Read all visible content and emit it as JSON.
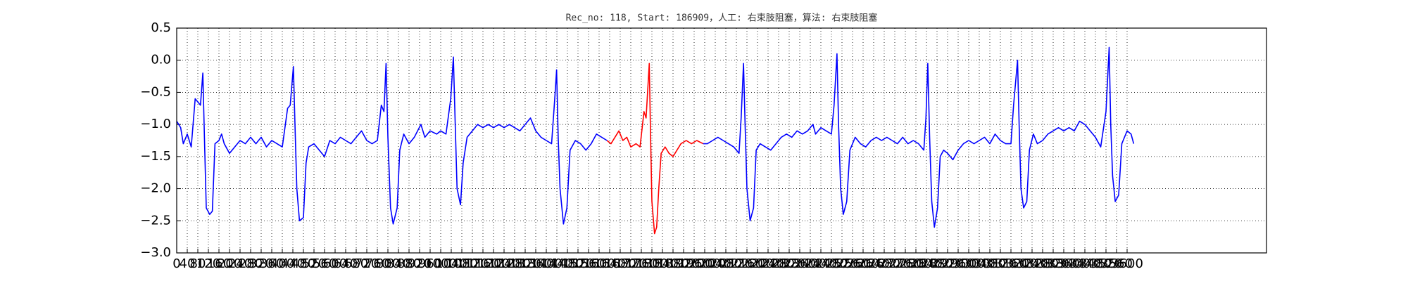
{
  "chart_data": {
    "type": "line",
    "title": "Rec_no: 118, Start: 186909，人工: 右束肢阻塞，算法: 右束肢阻塞",
    "xlim": [
      0,
      4128
    ],
    "ylim": [
      -3.0,
      0.5
    ],
    "yticks": [
      0.5,
      {
        "value": 0,
        "label": "0.0"
      },
      {
        "value": -0.5,
        "label": "−0.5"
      },
      {
        "value": -1,
        "label": "−1.0"
      },
      {
        "value": -1.5,
        "label": "−1.5"
      },
      {
        "value": -2,
        "label": "−2.0"
      },
      {
        "value": -2.5,
        "label": "−2.5"
      },
      {
        "value": -3,
        "label": "−3.0"
      }
    ],
    "xticks": [
      0,
      40,
      80,
      120,
      160,
      200,
      240,
      280,
      320,
      360,
      400,
      440,
      480,
      520,
      560,
      600,
      640,
      680,
      720,
      760,
      800,
      840,
      880,
      920,
      960,
      1000,
      1040,
      1080,
      1120,
      1160,
      1200,
      1240,
      1280,
      1320,
      1360,
      1400,
      1440,
      1480,
      1520,
      1560,
      1600,
      1640,
      1680,
      1720,
      1760,
      1800,
      1840,
      1880,
      1920,
      1960,
      2000,
      2040,
      2080,
      2120,
      2160,
      2200,
      2240,
      2280,
      2320,
      2360,
      2400,
      2440,
      2480,
      2520,
      2560,
      2600,
      2640,
      2680,
      2720,
      2760,
      2800,
      2840,
      2880,
      2920,
      2960,
      3000,
      3040,
      3080,
      3120,
      3160,
      3200,
      3240,
      3280,
      3320,
      3360,
      3400,
      3440,
      3480,
      3520,
      3560,
      3600
    ],
    "grid": true,
    "series": [
      {
        "color": "#0000ff",
        "x": [
          0,
          15,
          25,
          40,
          55,
          70,
          80,
          90,
          99,
          105,
          112,
          125,
          135,
          145,
          160,
          170,
          180,
          200,
          220,
          240,
          260,
          280,
          300,
          320,
          340,
          360,
          380,
          400,
          420,
          430,
          442,
          448,
          455,
          465,
          480,
          490,
          500,
          520,
          540,
          560,
          580,
          600,
          620,
          640,
          660,
          680,
          700,
          720,
          740,
          760,
          775,
          785,
          793,
          800,
          810,
          820,
          835,
          845,
          860,
          880,
          900,
          925,
          940,
          960,
          985,
          1000,
          1020,
          1038,
          1048,
          1055,
          1062,
          1075,
          1085,
          1100,
          1120,
          1140,
          1160,
          1180,
          1200,
          1220,
          1240,
          1260,
          1280,
          1300,
          1320,
          1340,
          1360,
          1380,
          1400,
          1420,
          1432,
          1439,
          1445,
          1452,
          1465,
          1478,
          1490,
          1510,
          1530,
          1550,
          1570,
          1590,
          1610,
          1630
        ],
        "values": [
          -0.95,
          -1.05,
          -1.3,
          -1.15,
          -1.35,
          -0.6,
          -0.65,
          -0.7,
          -0.2,
          -1.2,
          -2.3,
          -2.4,
          -2.35,
          -1.3,
          -1.25,
          -1.15,
          -1.3,
          -1.45,
          -1.35,
          -1.25,
          -1.3,
          -1.2,
          -1.3,
          -1.2,
          -1.35,
          -1.25,
          -1.3,
          -1.35,
          -0.75,
          -0.7,
          -0.1,
          -1.0,
          -2.0,
          -2.5,
          -2.45,
          -1.6,
          -1.35,
          -1.3,
          -1.4,
          -1.5,
          -1.25,
          -1.3,
          -1.2,
          -1.25,
          -1.3,
          -1.2,
          -1.1,
          -1.25,
          -1.3,
          -1.25,
          -0.7,
          -0.8,
          -0.05,
          -1.2,
          -2.3,
          -2.55,
          -2.3,
          -1.4,
          -1.15,
          -1.3,
          -1.2,
          -1.0,
          -1.2,
          -1.1,
          -1.15,
          -1.1,
          -1.15,
          -0.6,
          0.05,
          -1.0,
          -2.0,
          -2.25,
          -1.6,
          -1.2,
          -1.1,
          -1.0,
          -1.05,
          -1.0,
          -1.05,
          -1.0,
          -1.05,
          -1.0,
          -1.05,
          -1.1,
          -1.0,
          -0.9,
          -1.1,
          -1.2,
          -1.25,
          -1.3,
          -0.6,
          -0.15,
          -1.2,
          -2.0,
          -2.55,
          -2.3,
          -1.4,
          -1.25,
          -1.3,
          -1.4,
          -1.3,
          -1.15,
          -1.2,
          -1.25
        ]
      },
      {
        "color": "#ff0000",
        "x": [
          1630,
          1645,
          1660,
          1675,
          1690,
          1705,
          1720,
          1740,
          1755,
          1770,
          1778,
          1790,
          1795,
          1800,
          1810,
          1818,
          1826,
          1835,
          1850,
          1865,
          1880,
          1895,
          1910,
          1930,
          1950,
          1970,
          1994
        ],
        "values": [
          -1.25,
          -1.3,
          -1.2,
          -1.1,
          -1.25,
          -1.2,
          -1.35,
          -1.3,
          -1.35,
          -0.8,
          -0.9,
          -0.05,
          -1.2,
          -2.2,
          -2.7,
          -2.6,
          -2.0,
          -1.45,
          -1.35,
          -1.45,
          -1.5,
          -1.4,
          -1.3,
          -1.25,
          -1.3,
          -1.25,
          -1.3
        ]
      },
      {
        "color": "#0000ff",
        "x": [
          1994,
          2010,
          2030,
          2050,
          2070,
          2090,
          2110,
          2130,
          2138,
          2147,
          2153,
          2160,
          2172,
          2185,
          2195,
          2210,
          2230,
          2250,
          2270,
          2290,
          2310,
          2330,
          2350,
          2370,
          2390,
          2410,
          2420,
          2440,
          2460,
          2480,
          2490,
          2501,
          2507,
          2515,
          2525,
          2538,
          2550,
          2570,
          2590,
          2610,
          2630,
          2650,
          2670,
          2690,
          2710,
          2730,
          2750,
          2770,
          2790,
          2810,
          2830,
          2838,
          2845,
          2852,
          2860,
          2870,
          2882,
          2892,
          2905,
          2920,
          2940,
          2960,
          2980,
          3000,
          3020,
          3040,
          3060,
          3080,
          3100,
          3120,
          3140,
          3160,
          3170,
          3185,
          3191,
          3198,
          3208,
          3220,
          3230,
          3245,
          3260,
          3280,
          3300,
          3320,
          3340,
          3360,
          3380,
          3400,
          3420,
          3440,
          3460,
          3480,
          3500,
          3520,
          3532,
          3538,
          3545,
          3555,
          3568,
          3580,
          3600,
          3615,
          3625
        ],
        "values": [
          -1.3,
          -1.3,
          -1.25,
          -1.2,
          -1.25,
          -1.3,
          -1.35,
          -1.45,
          -0.9,
          -0.05,
          -1.0,
          -2.0,
          -2.5,
          -2.3,
          -1.4,
          -1.3,
          -1.35,
          -1.4,
          -1.3,
          -1.2,
          -1.15,
          -1.2,
          -1.1,
          -1.15,
          -1.1,
          -1.0,
          -1.15,
          -1.05,
          -1.1,
          -1.15,
          -0.7,
          0.1,
          -1.0,
          -2.0,
          -2.4,
          -2.2,
          -1.4,
          -1.2,
          -1.3,
          -1.35,
          -1.25,
          -1.2,
          -1.25,
          -1.2,
          -1.25,
          -1.3,
          -1.2,
          -1.3,
          -1.25,
          -1.3,
          -1.4,
          -0.9,
          -0.05,
          -1.2,
          -2.2,
          -2.6,
          -2.3,
          -1.5,
          -1.4,
          -1.45,
          -1.55,
          -1.4,
          -1.3,
          -1.25,
          -1.3,
          -1.25,
          -1.2,
          -1.3,
          -1.15,
          -1.25,
          -1.3,
          -1.3,
          -0.7,
          0.0,
          -1.0,
          -2.0,
          -2.3,
          -2.2,
          -1.4,
          -1.15,
          -1.3,
          -1.25,
          -1.15,
          -1.1,
          -1.05,
          -1.1,
          -1.05,
          -1.1,
          -0.95,
          -1.0,
          -1.1,
          -1.2,
          -1.35,
          -0.8,
          0.2,
          -1.0,
          -1.8,
          -2.2,
          -2.1,
          -1.3,
          -1.1,
          -1.15,
          -1.3
        ]
      }
    ]
  }
}
